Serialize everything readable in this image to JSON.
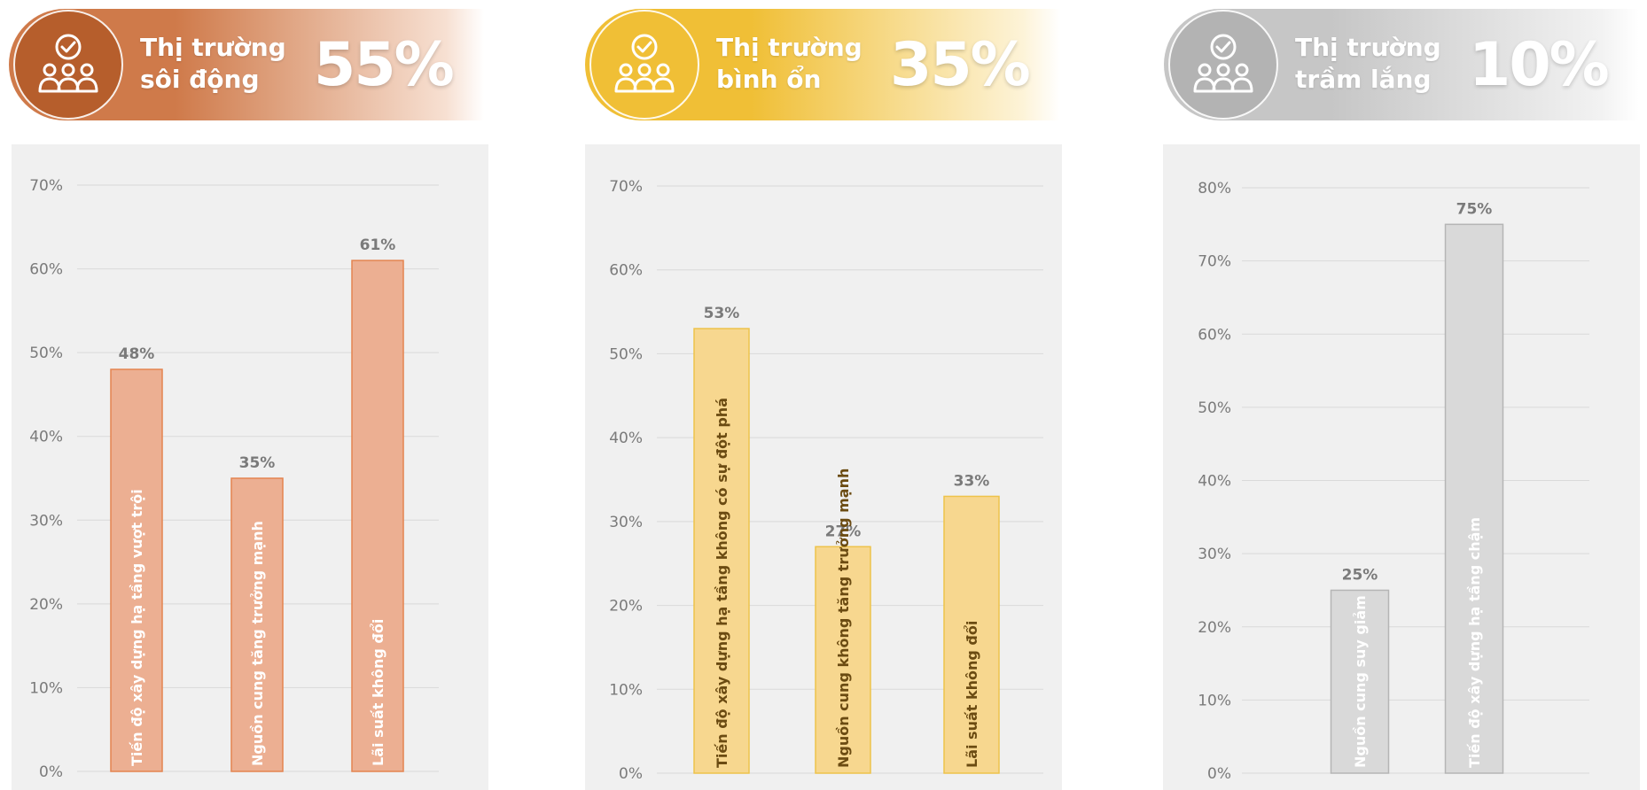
{
  "segments": [
    {
      "title_line1": "Thị trường",
      "title_line2": "sôi động",
      "share": "55%",
      "colors": {
        "circle": "#b65e2c",
        "band_from": "#cf7a4a",
        "band_to": "#f7e0d2",
        "bar_fill": "#ecaf92",
        "bar_stroke": "#e48450",
        "bar_text": "#ffffff"
      },
      "icon": "people-check-icon"
    },
    {
      "title_line1": "Thị trường",
      "title_line2": "bình ổn",
      "share": "35%",
      "colors": {
        "circle": "#f0bf36",
        "band_from": "#f0bf36",
        "band_to": "#fdf3d7",
        "bar_fill": "#f7d78f",
        "bar_stroke": "#eec34a",
        "bar_text": "#6b4b12"
      },
      "icon": "people-check-icon"
    },
    {
      "title_line1": "Thị trường",
      "title_line2": "trầm lắng",
      "share": "10%",
      "colors": {
        "circle": "#b3b3b3",
        "band_from": "#c6c6c6",
        "band_to": "#f2f2f2",
        "bar_fill": "#d9d9d9",
        "bar_stroke": "#b5b5b5",
        "bar_text": "#ffffff"
      },
      "icon": "people-check-icon"
    }
  ],
  "chart_data": [
    {
      "type": "bar",
      "categories": [
        "Tiến độ xây dựng hạ tầng vượt trội",
        "Nguồn cung tăng trưởng mạnh",
        "Lãi suất không đổi"
      ],
      "values": [
        48,
        35,
        61
      ],
      "value_labels": [
        "48%",
        "35%",
        "61%"
      ],
      "ylim": [
        0,
        70
      ],
      "yticks": [
        0,
        10,
        20,
        30,
        40,
        50,
        60,
        70
      ],
      "ytick_labels": [
        "0%",
        "10%",
        "20%",
        "30%",
        "40%",
        "50%",
        "60%",
        "70%"
      ],
      "grid": true,
      "category_labels_inside_bars": true
    },
    {
      "type": "bar",
      "categories": [
        "Tiến độ xây dựng hạ tầng không có sự đột phá",
        "Nguồn cung không tăng trưởng mạnh",
        "Lãi suất không đổi"
      ],
      "values": [
        53,
        27,
        33
      ],
      "value_labels": [
        "53%",
        "27%",
        "33%"
      ],
      "ylim": [
        0,
        70
      ],
      "yticks": [
        0,
        10,
        20,
        30,
        40,
        50,
        60,
        70
      ],
      "ytick_labels": [
        "0%",
        "10%",
        "20%",
        "30%",
        "40%",
        "50%",
        "60%",
        "70%"
      ],
      "grid": true,
      "category_labels_inside_bars": true
    },
    {
      "type": "bar",
      "categories": [
        "Nguồn cung suy giảm",
        "Tiến độ xây dựng hạ tầng chậm"
      ],
      "values": [
        25,
        75
      ],
      "value_labels": [
        "25%",
        "75%"
      ],
      "ylim": [
        0,
        80
      ],
      "yticks": [
        0,
        10,
        20,
        30,
        40,
        50,
        60,
        70,
        80
      ],
      "ytick_labels": [
        "0%",
        "10%",
        "20%",
        "30%",
        "40%",
        "50%",
        "60%",
        "70%",
        "80%"
      ],
      "grid": true,
      "category_labels_inside_bars": true
    }
  ]
}
